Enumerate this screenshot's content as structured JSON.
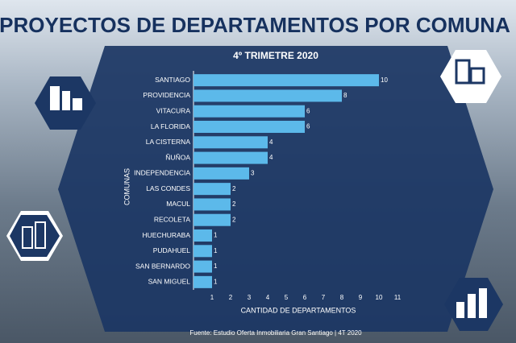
{
  "chart_data": {
    "type": "bar",
    "orientation": "horizontal",
    "title": "PROYECTOS DE DEPARTAMENTOS POR COMUNA",
    "subtitle": "4º TRIMETRE 2020",
    "x_label": "CANTIDAD DE DEPARTAMENTOS",
    "y_label": "COMUNAS",
    "source": "Fuente: Estudio Oferta Inmobiliaria Gran Santiago | 4T 2020",
    "categories": [
      "SANTIAGO",
      "PROVIDENCIA",
      "VITACURA",
      "LA FLORIDA",
      "LA CISTERNA",
      "ÑUÑOA",
      "INDEPENDENCIA",
      "LAS CONDES",
      "MACUL",
      "RECOLETA",
      "HUECHURABA",
      "PUDAHUEL",
      "SAN BERNARDO",
      "SAN MIGUEL"
    ],
    "values": [
      10,
      8,
      6,
      6,
      4,
      4,
      3,
      2,
      2,
      2,
      1,
      1,
      1,
      1
    ],
    "color": "#5cb9ea",
    "xlim": [
      0,
      11
    ],
    "xticks": [
      1,
      2,
      3,
      4,
      5,
      6,
      7,
      8,
      9,
      10,
      11
    ]
  }
}
